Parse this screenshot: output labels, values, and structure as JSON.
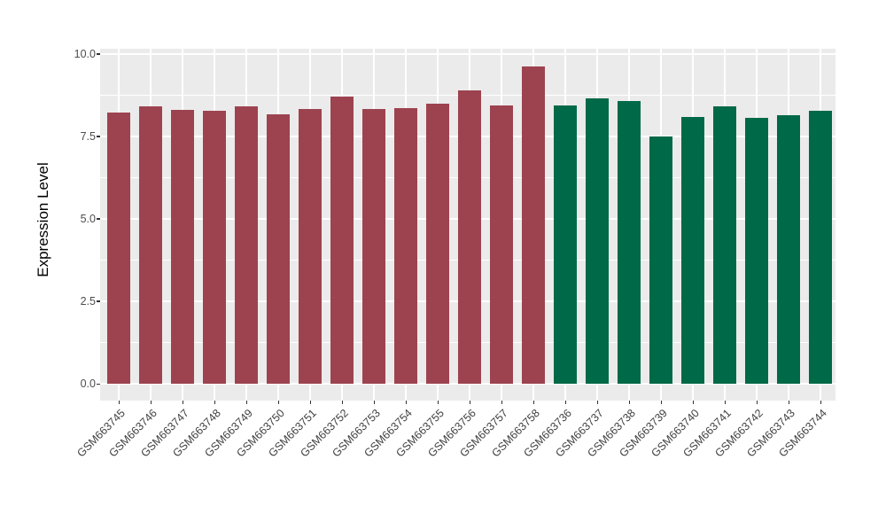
{
  "chart_data": {
    "type": "bar",
    "title": "",
    "xlabel": "",
    "ylabel": "Expression Level",
    "legend": false,
    "grid": true,
    "panel_background": "#EBEBEB",
    "gridline_color": "#FFFFFF",
    "group_colors": [
      "#9D4350",
      "#006947"
    ],
    "groups": [
      0,
      0,
      0,
      0,
      0,
      0,
      0,
      0,
      0,
      0,
      0,
      0,
      0,
      0,
      1,
      1,
      1,
      1,
      1,
      1,
      1,
      1,
      1
    ],
    "categories": [
      "GSM663745",
      "GSM663746",
      "GSM663747",
      "GSM663748",
      "GSM663749",
      "GSM663750",
      "GSM663751",
      "GSM663752",
      "GSM663753",
      "GSM663754",
      "GSM663755",
      "GSM663756",
      "GSM663757",
      "GSM663758",
      "GSM663736",
      "GSM663737",
      "GSM663738",
      "GSM663739",
      "GSM663740",
      "GSM663741",
      "GSM663742",
      "GSM663743",
      "GSM663744"
    ],
    "values": [
      8.24,
      8.41,
      8.3,
      8.28,
      8.42,
      8.18,
      8.33,
      8.72,
      8.33,
      8.37,
      8.5,
      8.91,
      8.43,
      9.63,
      8.44,
      8.66,
      8.57,
      7.49,
      8.08,
      8.42,
      8.06,
      8.16,
      8.28
    ],
    "y_tick_labels": [
      "0.0",
      "2.5",
      "5.0",
      "7.5",
      "10.0"
    ],
    "y_ticks": [
      0,
      2.5,
      5,
      7.5,
      10
    ],
    "y_minor_ticks": [
      1.25,
      3.75,
      6.25,
      8.75
    ],
    "ylim": [
      -0.5,
      10.15
    ]
  }
}
